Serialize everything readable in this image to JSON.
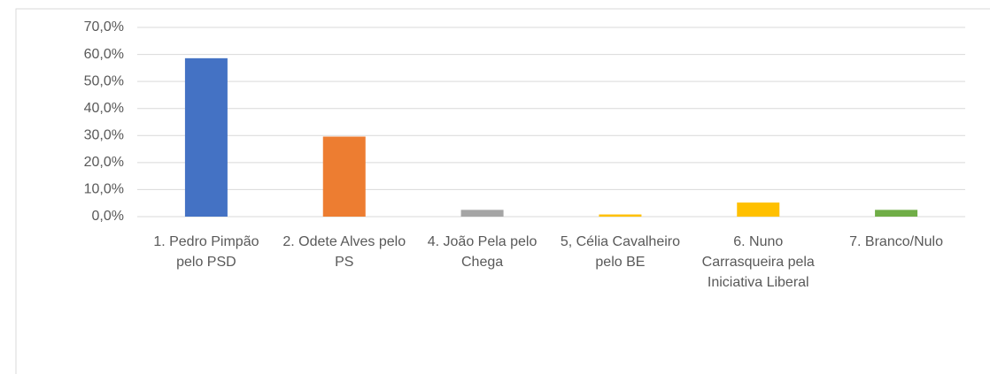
{
  "chart_data": {
    "type": "bar",
    "categories": [
      "1. Pedro Pimpão  pelo PSD",
      "2. Odete Alves pelo PS",
      "4. João Pela pelo Chega",
      "5, Célia Cavalheiro pelo BE",
      "6. Nuno Carrasqueira pela Iniciativa Liberal",
      "7. Branco/Nulo"
    ],
    "values": [
      58.6,
      29.6,
      2.5,
      0.8,
      5.2,
      2.5
    ],
    "colors": [
      "#4472c4",
      "#ed7d31",
      "#a5a5a5",
      "#ffc000",
      "#ffc000",
      "#70ad47"
    ],
    "ylim": [
      0,
      70
    ],
    "yticks": [
      {
        "value": 0,
        "label": "0,0%"
      },
      {
        "value": 10,
        "label": "10,0%"
      },
      {
        "value": 20,
        "label": "20,0%"
      },
      {
        "value": 30,
        "label": "30,0%"
      },
      {
        "value": 40,
        "label": "40,0%"
      },
      {
        "value": 50,
        "label": "50,0%"
      },
      {
        "value": 60,
        "label": "60,0%"
      },
      {
        "value": 70,
        "label": "70,0%"
      }
    ],
    "grid": true
  }
}
